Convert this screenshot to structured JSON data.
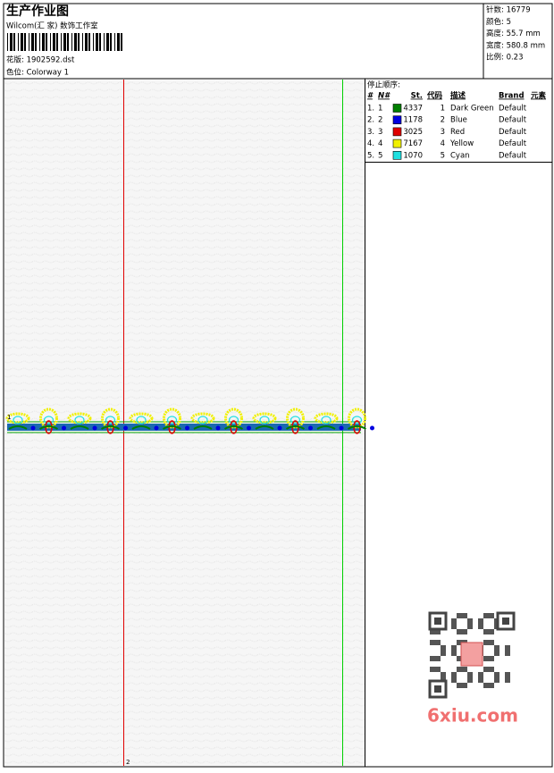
{
  "header": {
    "title": "生产作业图",
    "studio": "Wilcom(汇 家) 数饰工作室",
    "design": "花版: 1902592.dst",
    "colorway": "色位: Colorway 1",
    "info": [
      "针数: 16779",
      "颜色: 5",
      "高度: 55.7 mm",
      "宽度: 580.8 mm",
      "比例: 0.23"
    ]
  },
  "table": {
    "title": "停止顺序:",
    "headers": [
      "#",
      "N#",
      "St.",
      "代码",
      "描述",
      "Brand",
      "元素"
    ],
    "rows": [
      {
        "num": "1.",
        "n": "1",
        "color": "#008000",
        "st": "4337",
        "code": "1",
        "desc": "Dark Green",
        "brand": "Default"
      },
      {
        "num": "2.",
        "n": "2",
        "color": "#0000e0",
        "st": "1178",
        "code": "2",
        "desc": "Blue",
        "brand": "Default"
      },
      {
        "num": "3.",
        "n": "3",
        "color": "#e00000",
        "st": "3025",
        "code": "3",
        "desc": "Red",
        "brand": "Default"
      },
      {
        "num": "4.",
        "n": "4",
        "color": "#f0f000",
        "st": "7167",
        "code": "4",
        "desc": "Yellow",
        "brand": "Default"
      },
      {
        "num": "5.",
        "n": "5",
        "color": "#20e0e0",
        "st": "1070",
        "code": "5",
        "desc": "Cyan",
        "brand": "Default"
      }
    ]
  },
  "markers": [
    "1",
    "2"
  ],
  "watermark": "6xiu.com"
}
